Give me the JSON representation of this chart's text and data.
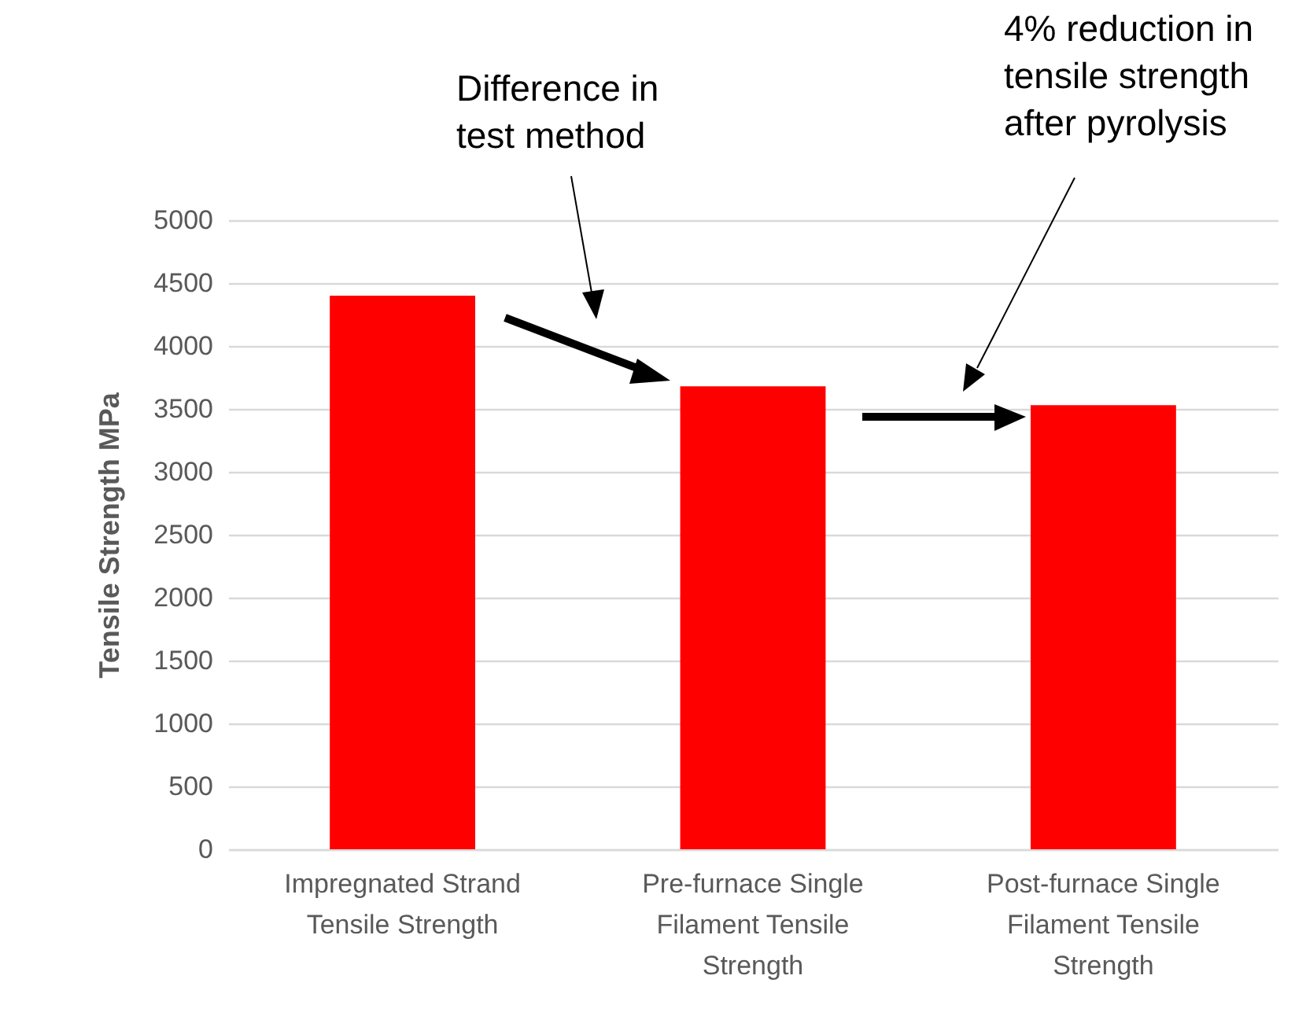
{
  "chart_data": {
    "type": "bar",
    "ylabel": "Tensile Strength MPa",
    "categories": [
      "Impregnated Strand Tensile Strength",
      "Pre-furnace Single Filament Tensile Strength",
      "Post-furnace Single Filament Tensile Strength"
    ],
    "values": [
      4400,
      3680,
      3530
    ],
    "color": "#ff0000",
    "ylim": [
      0,
      5000
    ],
    "yticks": [
      0,
      500,
      1000,
      1500,
      2000,
      2500,
      3000,
      3500,
      4000,
      4500,
      5000
    ],
    "grid": "y",
    "annotations": [
      "Difference in test method",
      "4% reduction in tensile strength after pyrolysis"
    ]
  }
}
